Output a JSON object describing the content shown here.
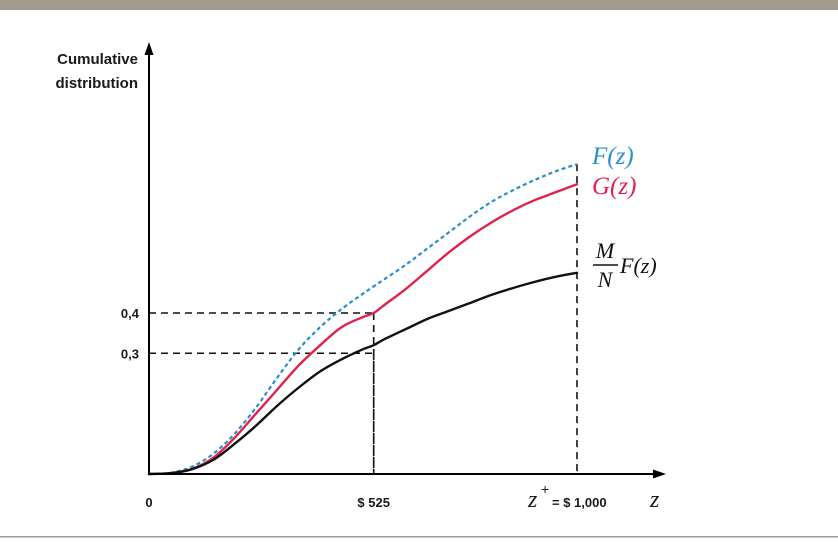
{
  "chart_data": {
    "type": "line",
    "ylabel": [
      "Cumulative",
      "distribution"
    ],
    "xlabel": "z",
    "xlim": [
      0,
      1000
    ],
    "ylim": [
      0,
      0.81
    ],
    "grid": false,
    "x_ticks": [
      {
        "value": 0,
        "label": "0"
      },
      {
        "value": 525,
        "label": "$ 525"
      }
    ],
    "x_endpoint": {
      "value": 1000,
      "z_symbol": "z",
      "superscript": "+",
      "label": "= $ 1,000"
    },
    "y_ticks": [
      {
        "value": 0.4,
        "label": "0,4"
      },
      {
        "value": 0.3,
        "label": "0,3"
      }
    ],
    "reference_lines": [
      {
        "x": 525,
        "y": 0.4
      },
      {
        "x": 525,
        "y": 0.3
      },
      {
        "x": 1000,
        "y": 0.77
      }
    ],
    "series": [
      {
        "name": "F(z)",
        "color": "#2b8fcb",
        "style": "dashed",
        "x": [
          0,
          50,
          100,
          150,
          200,
          250,
          300,
          350,
          400,
          450,
          500,
          525,
          550,
          600,
          650,
          700,
          750,
          800,
          850,
          900,
          950,
          1000
        ],
        "y": [
          0,
          0.003,
          0.018,
          0.05,
          0.1,
          0.165,
          0.24,
          0.31,
          0.365,
          0.41,
          0.448,
          0.466,
          0.484,
          0.52,
          0.56,
          0.6,
          0.64,
          0.676,
          0.705,
          0.73,
          0.752,
          0.77
        ]
      },
      {
        "name": "G(z)",
        "color": "#e0234e",
        "style": "solid",
        "x": [
          0,
          50,
          100,
          150,
          200,
          250,
          300,
          350,
          400,
          450,
          500,
          525,
          550,
          600,
          650,
          700,
          750,
          800,
          850,
          900,
          950,
          1000
        ],
        "y": [
          0,
          0.002,
          0.012,
          0.04,
          0.09,
          0.15,
          0.21,
          0.27,
          0.32,
          0.365,
          0.39,
          0.4,
          0.42,
          0.46,
          0.505,
          0.55,
          0.59,
          0.625,
          0.655,
          0.68,
          0.7,
          0.72
        ]
      },
      {
        "name_parts": {
          "numerator": "M",
          "denominator": "N",
          "rest": "F(z)"
        },
        "color": "#111111",
        "style": "solid",
        "x": [
          0,
          50,
          100,
          150,
          200,
          250,
          300,
          350,
          400,
          450,
          500,
          525,
          550,
          600,
          650,
          700,
          750,
          800,
          850,
          900,
          950,
          1000
        ],
        "y": [
          0,
          0.002,
          0.012,
          0.035,
          0.075,
          0.12,
          0.17,
          0.215,
          0.255,
          0.285,
          0.31,
          0.32,
          0.335,
          0.36,
          0.385,
          0.405,
          0.425,
          0.445,
          0.462,
          0.477,
          0.49,
          0.5
        ]
      }
    ]
  }
}
